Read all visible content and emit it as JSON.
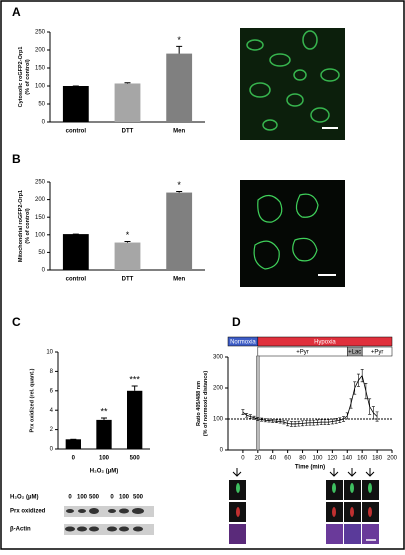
{
  "panel_labels": [
    "A",
    "B",
    "C",
    "D"
  ],
  "chart_data": [
    {
      "type": "bar",
      "ylabel": [
        "Cytosolic roGFP2-Orp1",
        "(% of control)"
      ],
      "categories": [
        "control",
        "DTT",
        "Men"
      ],
      "values": [
        100,
        107,
        190
      ],
      "errors": [
        0,
        2,
        20
      ],
      "colors": [
        "#000000",
        "#a6a6a6",
        "#808080"
      ],
      "annotations": [
        null,
        null,
        "*"
      ],
      "ylim": [
        0,
        250
      ],
      "yticks": [
        0,
        50,
        100,
        150,
        200,
        250
      ]
    },
    {
      "type": "bar",
      "ylabel": [
        "Mitochondrial roGFP2-Orp1",
        "(% of control)"
      ],
      "categories": [
        "control",
        "DTT",
        "Men"
      ],
      "values": [
        102,
        78,
        220
      ],
      "errors": [
        0,
        3,
        3
      ],
      "colors": [
        "#000000",
        "#a6a6a6",
        "#808080"
      ],
      "annotations": [
        null,
        "*",
        "*"
      ],
      "ylim": [
        0,
        250
      ],
      "yticks": [
        0,
        50,
        100,
        150,
        200,
        250
      ]
    },
    {
      "type": "bar",
      "ylabel": [
        "Prx oxidized (rel. quant.)"
      ],
      "xlabel": "H₂O₂ (µM)",
      "categories": [
        "0",
        "100",
        "500"
      ],
      "values": [
        1,
        3,
        6
      ],
      "errors": [
        0,
        0.2,
        0.5
      ],
      "colors": [
        "#000000",
        "#000000",
        "#000000"
      ],
      "annotations": [
        null,
        "**",
        "***"
      ],
      "ylim": [
        0,
        10
      ],
      "yticks": [
        0,
        2,
        4,
        6,
        8,
        10
      ]
    },
    {
      "type": "line",
      "ylabel": [
        "Ratio 405/488 nm",
        "(% of normoxic distance)"
      ],
      "xlabel": "Time (min)",
      "x": [
        0,
        5,
        10,
        15,
        20,
        25,
        30,
        35,
        40,
        45,
        50,
        55,
        60,
        65,
        70,
        75,
        80,
        85,
        90,
        95,
        100,
        105,
        110,
        115,
        120,
        125,
        130,
        135,
        140,
        145,
        150,
        155,
        160,
        165,
        170,
        175,
        180
      ],
      "values": [
        122,
        112,
        108,
        104,
        100,
        98,
        96,
        95,
        94,
        93,
        92,
        90,
        86,
        84,
        84,
        85,
        86,
        87,
        88,
        88,
        89,
        90,
        90,
        90,
        92,
        94,
        96,
        100,
        110,
        150,
        200,
        225,
        240,
        190,
        140,
        120,
        108
      ],
      "errors": [
        8,
        6,
        6,
        5,
        5,
        5,
        5,
        5,
        5,
        5,
        5,
        6,
        8,
        8,
        8,
        8,
        8,
        8,
        8,
        8,
        8,
        8,
        8,
        8,
        8,
        8,
        8,
        8,
        10,
        15,
        20,
        20,
        20,
        25,
        25,
        20,
        15
      ],
      "color": "#000000",
      "reference": 100,
      "phases": [
        {
          "label": "Normoxia",
          "color": "#3d5cc6",
          "start": -20,
          "end": 20,
          "row": 0
        },
        {
          "label": "Hypoxia",
          "color": "#e0303c",
          "start": 20,
          "end": 200,
          "row": 0
        },
        {
          "label": "+Pyr",
          "color": "#ffffff",
          "start": 20,
          "end": 140,
          "row": 1
        },
        {
          "label": "+Lac",
          "color": "#a0a0a0",
          "start": 140,
          "end": 160,
          "row": 1
        },
        {
          "label": "+Pyr",
          "color": "#ffffff",
          "start": 160,
          "end": 200,
          "row": 1
        }
      ],
      "xlim": [
        -20,
        200
      ],
      "xticks": [
        0,
        20,
        40,
        60,
        80,
        100,
        120,
        140,
        160,
        180,
        200
      ],
      "ylim": [
        0,
        300
      ],
      "yticks": [
        0,
        100,
        200,
        300
      ]
    }
  ],
  "blot": {
    "title": "H₂O₂ (µM)",
    "lanes": [
      "0",
      "100",
      "500",
      "0",
      "100",
      "500"
    ],
    "rows": [
      "Prx oxidized",
      "β-Actin"
    ]
  }
}
